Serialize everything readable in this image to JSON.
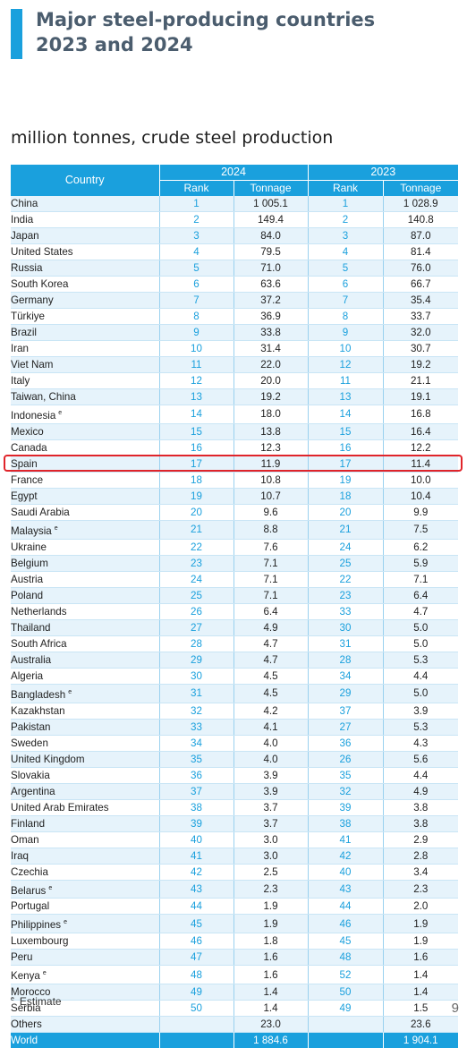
{
  "header": {
    "title_line1": "Major steel-producing countries",
    "title_line2": "2023 and 2024"
  },
  "subtitle": "million tonnes, crude steel production",
  "table": {
    "col_country": "Country",
    "year_a": "2024",
    "year_b": "2023",
    "col_rank": "Rank",
    "col_tonnage": "Tonnage",
    "rows": [
      {
        "country": "China",
        "est": false,
        "rank24": "1",
        "ton24": "1 005.1",
        "rank23": "1",
        "ton23": "1 028.9"
      },
      {
        "country": "India",
        "est": false,
        "rank24": "2",
        "ton24": "149.4",
        "rank23": "2",
        "ton23": "140.8"
      },
      {
        "country": "Japan",
        "est": false,
        "rank24": "3",
        "ton24": "84.0",
        "rank23": "3",
        "ton23": "87.0"
      },
      {
        "country": "United States",
        "est": false,
        "rank24": "4",
        "ton24": "79.5",
        "rank23": "4",
        "ton23": "81.4"
      },
      {
        "country": "Russia",
        "est": false,
        "rank24": "5",
        "ton24": "71.0",
        "rank23": "5",
        "ton23": "76.0"
      },
      {
        "country": "South Korea",
        "est": false,
        "rank24": "6",
        "ton24": "63.6",
        "rank23": "6",
        "ton23": "66.7"
      },
      {
        "country": "Germany",
        "est": false,
        "rank24": "7",
        "ton24": "37.2",
        "rank23": "7",
        "ton23": "35.4"
      },
      {
        "country": "Türkiye",
        "est": false,
        "rank24": "8",
        "ton24": "36.9",
        "rank23": "8",
        "ton23": "33.7"
      },
      {
        "country": "Brazil",
        "est": false,
        "rank24": "9",
        "ton24": "33.8",
        "rank23": "9",
        "ton23": "32.0"
      },
      {
        "country": "Iran",
        "est": false,
        "rank24": "10",
        "ton24": "31.4",
        "rank23": "10",
        "ton23": "30.7"
      },
      {
        "country": "Viet Nam",
        "est": false,
        "rank24": "11",
        "ton24": "22.0",
        "rank23": "12",
        "ton23": "19.2"
      },
      {
        "country": "Italy",
        "est": false,
        "rank24": "12",
        "ton24": "20.0",
        "rank23": "11",
        "ton23": "21.1"
      },
      {
        "country": "Taiwan, China",
        "est": false,
        "rank24": "13",
        "ton24": "19.2",
        "rank23": "13",
        "ton23": "19.1"
      },
      {
        "country": "Indonesia",
        "est": true,
        "rank24": "14",
        "ton24": "18.0",
        "rank23": "14",
        "ton23": "16.8"
      },
      {
        "country": "Mexico",
        "est": false,
        "rank24": "15",
        "ton24": "13.8",
        "rank23": "15",
        "ton23": "16.4"
      },
      {
        "country": "Canada",
        "est": false,
        "rank24": "16",
        "ton24": "12.3",
        "rank23": "16",
        "ton23": "12.2"
      },
      {
        "country": "Spain",
        "est": false,
        "rank24": "17",
        "ton24": "11.9",
        "rank23": "17",
        "ton23": "11.4"
      },
      {
        "country": "France",
        "est": false,
        "rank24": "18",
        "ton24": "10.8",
        "rank23": "19",
        "ton23": "10.0"
      },
      {
        "country": "Egypt",
        "est": false,
        "rank24": "19",
        "ton24": "10.7",
        "rank23": "18",
        "ton23": "10.4"
      },
      {
        "country": "Saudi Arabia",
        "est": false,
        "rank24": "20",
        "ton24": "9.6",
        "rank23": "20",
        "ton23": "9.9"
      },
      {
        "country": "Malaysia",
        "est": true,
        "rank24": "21",
        "ton24": "8.8",
        "rank23": "21",
        "ton23": "7.5"
      },
      {
        "country": "Ukraine",
        "est": false,
        "rank24": "22",
        "ton24": "7.6",
        "rank23": "24",
        "ton23": "6.2"
      },
      {
        "country": "Belgium",
        "est": false,
        "rank24": "23",
        "ton24": "7.1",
        "rank23": "25",
        "ton23": "5.9"
      },
      {
        "country": "Austria",
        "est": false,
        "rank24": "24",
        "ton24": "7.1",
        "rank23": "22",
        "ton23": "7.1"
      },
      {
        "country": "Poland",
        "est": false,
        "rank24": "25",
        "ton24": "7.1",
        "rank23": "23",
        "ton23": "6.4"
      },
      {
        "country": "Netherlands",
        "est": false,
        "rank24": "26",
        "ton24": "6.4",
        "rank23": "33",
        "ton23": "4.7"
      },
      {
        "country": "Thailand",
        "est": false,
        "rank24": "27",
        "ton24": "4.9",
        "rank23": "30",
        "ton23": "5.0"
      },
      {
        "country": "South Africa",
        "est": false,
        "rank24": "28",
        "ton24": "4.7",
        "rank23": "31",
        "ton23": "5.0"
      },
      {
        "country": "Australia",
        "est": false,
        "rank24": "29",
        "ton24": "4.7",
        "rank23": "28",
        "ton23": "5.3"
      },
      {
        "country": "Algeria",
        "est": false,
        "rank24": "30",
        "ton24": "4.5",
        "rank23": "34",
        "ton23": "4.4"
      },
      {
        "country": "Bangladesh",
        "est": true,
        "rank24": "31",
        "ton24": "4.5",
        "rank23": "29",
        "ton23": "5.0"
      },
      {
        "country": "Kazakhstan",
        "est": false,
        "rank24": "32",
        "ton24": "4.2",
        "rank23": "37",
        "ton23": "3.9"
      },
      {
        "country": "Pakistan",
        "est": false,
        "rank24": "33",
        "ton24": "4.1",
        "rank23": "27",
        "ton23": "5.3"
      },
      {
        "country": "Sweden",
        "est": false,
        "rank24": "34",
        "ton24": "4.0",
        "rank23": "36",
        "ton23": "4.3"
      },
      {
        "country": "United Kingdom",
        "est": false,
        "rank24": "35",
        "ton24": "4.0",
        "rank23": "26",
        "ton23": "5.6"
      },
      {
        "country": "Slovakia",
        "est": false,
        "rank24": "36",
        "ton24": "3.9",
        "rank23": "35",
        "ton23": "4.4"
      },
      {
        "country": "Argentina",
        "est": false,
        "rank24": "37",
        "ton24": "3.9",
        "rank23": "32",
        "ton23": "4.9"
      },
      {
        "country": "United Arab Emirates",
        "est": false,
        "rank24": "38",
        "ton24": "3.7",
        "rank23": "39",
        "ton23": "3.8"
      },
      {
        "country": "Finland",
        "est": false,
        "rank24": "39",
        "ton24": "3.7",
        "rank23": "38",
        "ton23": "3.8"
      },
      {
        "country": "Oman",
        "est": false,
        "rank24": "40",
        "ton24": "3.0",
        "rank23": "41",
        "ton23": "2.9"
      },
      {
        "country": "Iraq",
        "est": false,
        "rank24": "41",
        "ton24": "3.0",
        "rank23": "42",
        "ton23": "2.8"
      },
      {
        "country": "Czechia",
        "est": false,
        "rank24": "42",
        "ton24": "2.5",
        "rank23": "40",
        "ton23": "3.4"
      },
      {
        "country": "Belarus",
        "est": true,
        "rank24": "43",
        "ton24": "2.3",
        "rank23": "43",
        "ton23": "2.3"
      },
      {
        "country": "Portugal",
        "est": false,
        "rank24": "44",
        "ton24": "1.9",
        "rank23": "44",
        "ton23": "2.0"
      },
      {
        "country": "Philippines",
        "est": true,
        "rank24": "45",
        "ton24": "1.9",
        "rank23": "46",
        "ton23": "1.9"
      },
      {
        "country": "Luxembourg",
        "est": false,
        "rank24": "46",
        "ton24": "1.8",
        "rank23": "45",
        "ton23": "1.9"
      },
      {
        "country": "Peru",
        "est": false,
        "rank24": "47",
        "ton24": "1.6",
        "rank23": "48",
        "ton23": "1.6"
      },
      {
        "country": "Kenya",
        "est": true,
        "rank24": "48",
        "ton24": "1.6",
        "rank23": "52",
        "ton23": "1.4"
      },
      {
        "country": "Morocco",
        "est": false,
        "rank24": "49",
        "ton24": "1.4",
        "rank23": "50",
        "ton23": "1.4"
      },
      {
        "country": "Serbia",
        "est": false,
        "rank24": "50",
        "ton24": "1.4",
        "rank23": "49",
        "ton23": "1.5"
      }
    ],
    "others": {
      "label": "Others",
      "ton24": "23.0",
      "ton23": "23.6"
    },
    "world": {
      "label": "World",
      "ton24": "1 884.6",
      "ton23": "1 904.1"
    }
  },
  "estimate_marker": "e",
  "footnote": "Estimate",
  "page_number": "9",
  "colors": {
    "accent": "#1aa0dd",
    "highlight_border": "#e0242a",
    "title": "#4b5d6e"
  }
}
